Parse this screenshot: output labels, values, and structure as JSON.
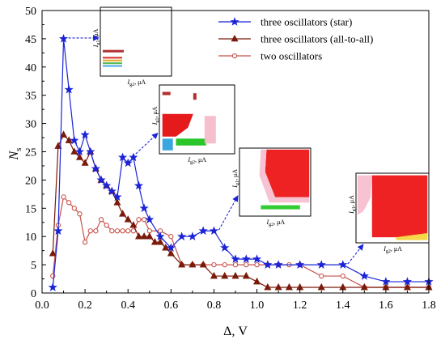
{
  "chart_data": {
    "type": "line",
    "xlabel": "Δ, V",
    "ylabel": "N",
    "ylabel_sub": "s",
    "xlim": [
      0.0,
      1.8
    ],
    "ylim": [
      0,
      50
    ],
    "x_ticks": [
      0.0,
      0.2,
      0.4,
      0.6,
      0.8,
      1.0,
      1.2,
      1.4,
      1.6,
      1.8
    ],
    "x_tick_labels": [
      "0.0",
      "0.2",
      "0.4",
      "0.6",
      "0.8",
      "1.0",
      "1.2",
      "1.4",
      "1.6",
      "1.8"
    ],
    "y_ticks": [
      0,
      5,
      10,
      15,
      20,
      25,
      30,
      35,
      40,
      45,
      50
    ],
    "y_tick_labels": [
      "0",
      "5",
      "10",
      "15",
      "20",
      "25",
      "30",
      "35",
      "40",
      "45",
      "50"
    ],
    "grid": false,
    "legend_position": "top-right",
    "series": [
      {
        "name": "three oscillators (star)",
        "color": "#1a24d6",
        "marker": "star",
        "x": [
          0.05,
          0.075,
          0.1,
          0.125,
          0.15,
          0.175,
          0.2,
          0.225,
          0.25,
          0.275,
          0.3,
          0.325,
          0.35,
          0.375,
          0.4,
          0.425,
          0.45,
          0.475,
          0.5,
          0.55,
          0.6,
          0.65,
          0.7,
          0.75,
          0.8,
          0.85,
          0.9,
          0.95,
          1.0,
          1.05,
          1.1,
          1.2,
          1.3,
          1.4,
          1.5,
          1.6,
          1.7,
          1.8
        ],
        "values": [
          1,
          11,
          45,
          36,
          27,
          25,
          28,
          25,
          22,
          20,
          19,
          18,
          17,
          24,
          23,
          24,
          19,
          15,
          13,
          10,
          8,
          10,
          10,
          11,
          11,
          8,
          6,
          6,
          6,
          5,
          5,
          5,
          5,
          5,
          3,
          2,
          2,
          2
        ]
      },
      {
        "name": "three oscillators (all-to-all)",
        "color": "#7a1a0a",
        "marker": "triangle",
        "x": [
          0.05,
          0.075,
          0.1,
          0.125,
          0.15,
          0.175,
          0.2,
          0.225,
          0.25,
          0.275,
          0.3,
          0.325,
          0.35,
          0.375,
          0.4,
          0.425,
          0.45,
          0.475,
          0.5,
          0.525,
          0.55,
          0.575,
          0.6,
          0.65,
          0.7,
          0.75,
          0.8,
          0.85,
          0.9,
          0.95,
          1.0,
          1.05,
          1.1,
          1.15,
          1.2,
          1.3,
          1.4,
          1.5,
          1.6,
          1.7,
          1.8
        ],
        "values": [
          7,
          26,
          28,
          27,
          25,
          24,
          23,
          25,
          22,
          20,
          19,
          18,
          16,
          14,
          13,
          12,
          10,
          10,
          10,
          9,
          9,
          8,
          7,
          5,
          5,
          5,
          3,
          3,
          3,
          3,
          2,
          1,
          1,
          1,
          1,
          1,
          1,
          1,
          1,
          1,
          1
        ]
      },
      {
        "name": "two oscillators",
        "color": "#c8504a",
        "marker": "circle",
        "x": [
          0.05,
          0.075,
          0.1,
          0.125,
          0.15,
          0.175,
          0.2,
          0.225,
          0.25,
          0.275,
          0.3,
          0.325,
          0.35,
          0.375,
          0.4,
          0.425,
          0.45,
          0.475,
          0.5,
          0.55,
          0.6,
          0.65,
          0.7,
          0.75,
          0.8,
          0.85,
          0.9,
          0.95,
          1.0,
          1.05,
          1.1,
          1.15,
          1.2,
          1.3,
          1.4,
          1.5,
          1.6,
          1.7,
          1.8
        ],
        "values": [
          3,
          12,
          17,
          16,
          15,
          14,
          9,
          11,
          11,
          13,
          12,
          11,
          11,
          11,
          11,
          11,
          13,
          13,
          11,
          11,
          10,
          5,
          5,
          5,
          5,
          5,
          5,
          5,
          5,
          5,
          5,
          5,
          5,
          3,
          3,
          1,
          1,
          1,
          1
        ]
      }
    ],
    "insets": [
      {
        "anchor_x": 0.1,
        "anchor_y": 45,
        "x_label": "I",
        "x_label_sub": "g2",
        "x_unit": ", μA",
        "y_label": "I",
        "y_label_sub": "g1",
        "y_unit": ", μA"
      },
      {
        "anchor_x": 0.4,
        "anchor_y": 24,
        "x_label": "I",
        "x_label_sub": "g2",
        "x_unit": ", μA",
        "y_label": "I",
        "y_label_sub": "g1",
        "y_unit": ", μA"
      },
      {
        "anchor_x": 0.8,
        "anchor_y": 11,
        "x_label": "I",
        "x_label_sub": "g2",
        "x_unit": ", μA",
        "y_label": "I",
        "y_label_sub": "g1",
        "y_unit": ", μA"
      },
      {
        "anchor_x": 1.4,
        "anchor_y": 5,
        "x_label": "I",
        "x_label_sub": "g2",
        "x_unit": ", μA",
        "y_label": "I",
        "y_label_sub": "g1",
        "y_unit": ", μA"
      }
    ]
  }
}
